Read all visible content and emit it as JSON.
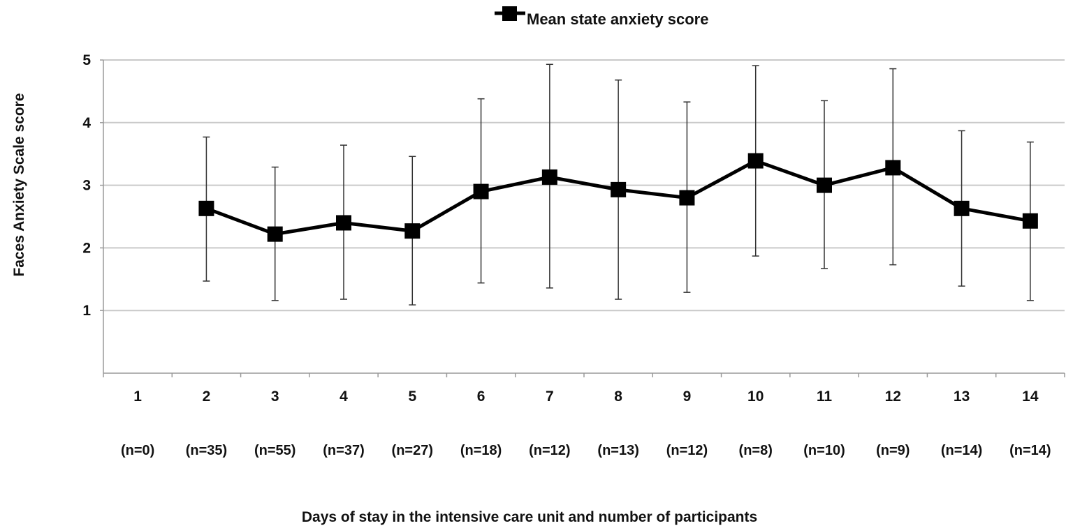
{
  "chart_data": {
    "type": "line",
    "ylabel": "Faces Anxiety Scale score",
    "xlabel": "Days of stay in the intensive care unit and number of participants",
    "ylim": [
      0,
      5
    ],
    "yticks": [
      1,
      2,
      3,
      4,
      5
    ],
    "grid": true,
    "legend_position": "top-center",
    "categories": [
      "1",
      "2",
      "3",
      "4",
      "5",
      "6",
      "7",
      "8",
      "9",
      "10",
      "11",
      "12",
      "13",
      "14"
    ],
    "n_labels": [
      "(n=0)",
      "(n=35)",
      "(n=55)",
      "(n=37)",
      "(n=27)",
      "(n=18)",
      "(n=12)",
      "(n=13)",
      "(n=12)",
      "(n=8)",
      "(n=10)",
      "(n=9)",
      "(n=14)",
      "(n=14)"
    ],
    "series": [
      {
        "name": "Mean state anxiety score",
        "color": "#000000",
        "marker": "square",
        "values": [
          null,
          2.63,
          2.22,
          2.4,
          2.27,
          2.9,
          3.13,
          2.93,
          2.8,
          3.39,
          3.0,
          3.28,
          2.63,
          2.43
        ],
        "error_upper": [
          null,
          3.77,
          3.29,
          3.64,
          3.46,
          4.38,
          4.93,
          4.68,
          4.33,
          4.91,
          4.35,
          4.86,
          3.87,
          3.69
        ],
        "error_lower": [
          null,
          1.47,
          1.16,
          1.18,
          1.09,
          1.44,
          1.36,
          1.18,
          1.29,
          1.87,
          1.67,
          1.73,
          1.39,
          1.16
        ]
      }
    ]
  }
}
